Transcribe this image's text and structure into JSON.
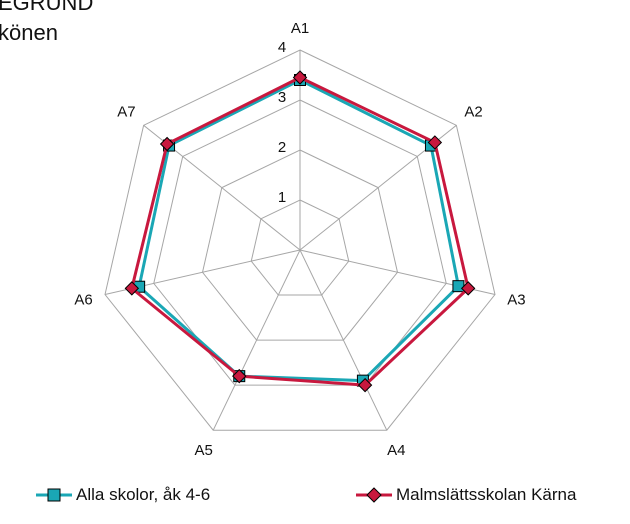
{
  "header": {
    "line1": "EGRUND",
    "line2": "könen"
  },
  "chart_data": {
    "type": "radar",
    "categories": [
      "A1",
      "A2",
      "A3",
      "A4",
      "A5",
      "A6",
      "A7"
    ],
    "rlim": [
      0,
      4
    ],
    "ticks": [
      1,
      2,
      3,
      4
    ],
    "grid": true,
    "legend_position": "bottom",
    "series": [
      {
        "name": "Alla skolor, åk 4-6",
        "color": "#1aa7b5",
        "marker": "square",
        "values": [
          3.4,
          3.35,
          3.25,
          2.9,
          2.8,
          3.3,
          3.35
        ]
      },
      {
        "name": "Malmslättsskolan Kärna",
        "color": "#c8183e",
        "marker": "diamond",
        "values": [
          3.45,
          3.45,
          3.45,
          3.0,
          2.8,
          3.45,
          3.4
        ]
      }
    ]
  }
}
